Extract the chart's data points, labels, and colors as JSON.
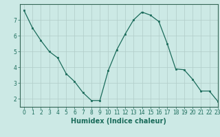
{
  "x": [
    0,
    1,
    2,
    3,
    4,
    5,
    6,
    7,
    8,
    9,
    10,
    11,
    12,
    13,
    14,
    15,
    16,
    17,
    18,
    19,
    20,
    21,
    22,
    23
  ],
  "y": [
    7.6,
    6.5,
    5.7,
    5.0,
    4.6,
    3.6,
    3.1,
    2.4,
    1.9,
    1.9,
    3.8,
    5.1,
    6.1,
    7.0,
    7.5,
    7.3,
    6.9,
    5.5,
    3.9,
    3.85,
    3.25,
    2.5,
    2.5,
    1.85
  ],
  "line_color": "#1a6b5a",
  "marker": "s",
  "marker_size": 2,
  "background_color": "#cce9e5",
  "grid_color": "#b0ccc8",
  "xlabel": "Humidex (Indice chaleur)",
  "ylim": [
    1.5,
    8.0
  ],
  "xlim": [
    -0.5,
    23
  ],
  "yticks": [
    2,
    3,
    4,
    5,
    6,
    7
  ],
  "xticks": [
    0,
    1,
    2,
    3,
    4,
    5,
    6,
    7,
    8,
    9,
    10,
    11,
    12,
    13,
    14,
    15,
    16,
    17,
    18,
    19,
    20,
    21,
    22,
    23
  ],
  "tick_label_size": 5.5,
  "xlabel_fontsize": 7,
  "spine_color": "#336655",
  "tick_color": "#1a6b5a"
}
